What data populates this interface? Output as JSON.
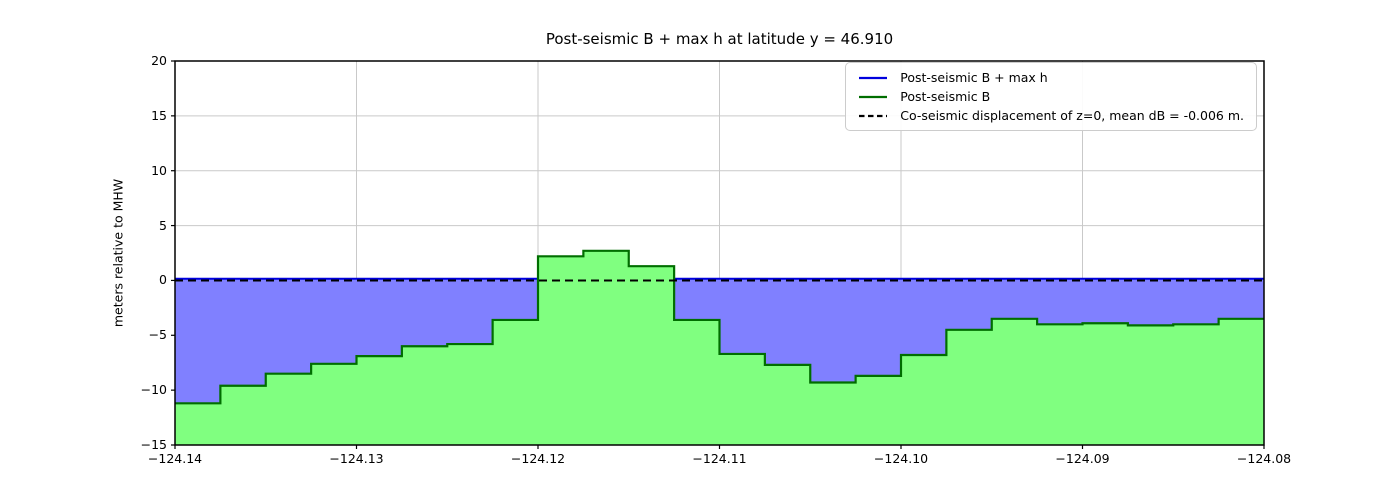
{
  "title": "Post-seismic B + max h at latitude y = 46.910",
  "ylabel": "meters relative to MHW",
  "axes": {
    "xticks": [
      {
        "value": -124.14,
        "label": "−124.14"
      },
      {
        "value": -124.13,
        "label": "−124.13"
      },
      {
        "value": -124.12,
        "label": "−124.12"
      },
      {
        "value": -124.11,
        "label": "−124.11"
      },
      {
        "value": -124.1,
        "label": "−124.10"
      },
      {
        "value": -124.09,
        "label": "−124.09"
      },
      {
        "value": -124.08,
        "label": "−124.08"
      }
    ],
    "yticks": [
      {
        "value": 20,
        "label": "20"
      },
      {
        "value": 15,
        "label": "15"
      },
      {
        "value": 10,
        "label": "10"
      },
      {
        "value": 5,
        "label": "5"
      },
      {
        "value": 0,
        "label": "0"
      },
      {
        "value": -5,
        "label": "−5"
      },
      {
        "value": -10,
        "label": "−10"
      },
      {
        "value": -15,
        "label": "−15"
      }
    ]
  },
  "legend": {
    "items": [
      {
        "label": "Post-seismic B + max h",
        "color": "#0000dd",
        "linestyle": "solid"
      },
      {
        "label": "Post-seismic B",
        "color": "#006e00",
        "linestyle": "solid"
      },
      {
        "label": "Co-seismic displacement of z=0, mean dB = -0.006 m.",
        "color": "#000000",
        "linestyle": "dashed"
      }
    ]
  },
  "colors": {
    "water_fill": "#8080ff",
    "water_line": "#0000dd",
    "land_fill": "#80ff80",
    "land_edge": "#006e00",
    "dashed_line": "#000000",
    "grid": "#c9c9c9",
    "spine": "#000000"
  },
  "chart_data": {
    "type": "area",
    "title": "Post-seismic B + max h at latitude y = 46.910",
    "xlabel": "",
    "ylabel": "meters relative to MHW",
    "xlim": [
      -124.14,
      -124.08
    ],
    "ylim": [
      -15,
      20
    ],
    "grid": true,
    "legend_position": "upper right",
    "series": [
      {
        "name": "Post-seismic B + max h",
        "kind": "hline",
        "value": 0.15,
        "note": "constant water level line, hidden where land rises above it"
      },
      {
        "name": "Post-seismic B",
        "kind": "step-area",
        "edges_x": [
          -124.14,
          -124.1375,
          -124.135,
          -124.1325,
          -124.13,
          -124.1275,
          -124.125,
          -124.1225,
          -124.12,
          -124.1175,
          -124.115,
          -124.1125,
          -124.11,
          -124.1075,
          -124.105,
          -124.1025,
          -124.1,
          -124.0975,
          -124.095,
          -124.0925,
          -124.09,
          -124.0875,
          -124.085,
          -124.0825,
          -124.08
        ],
        "values": [
          -11.2,
          -9.6,
          -8.5,
          -7.6,
          -6.9,
          -6.0,
          -5.8,
          -3.6,
          2.2,
          2.7,
          1.3,
          -3.6,
          -6.7,
          -7.7,
          -9.3,
          -8.7,
          -6.8,
          -4.5,
          -3.5,
          -4.0,
          -3.9,
          -4.1,
          -4.0,
          -3.5
        ]
      },
      {
        "name": "Co-seismic displacement of z=0, mean dB = -0.006 m.",
        "kind": "hline",
        "value": -0.006
      }
    ]
  }
}
